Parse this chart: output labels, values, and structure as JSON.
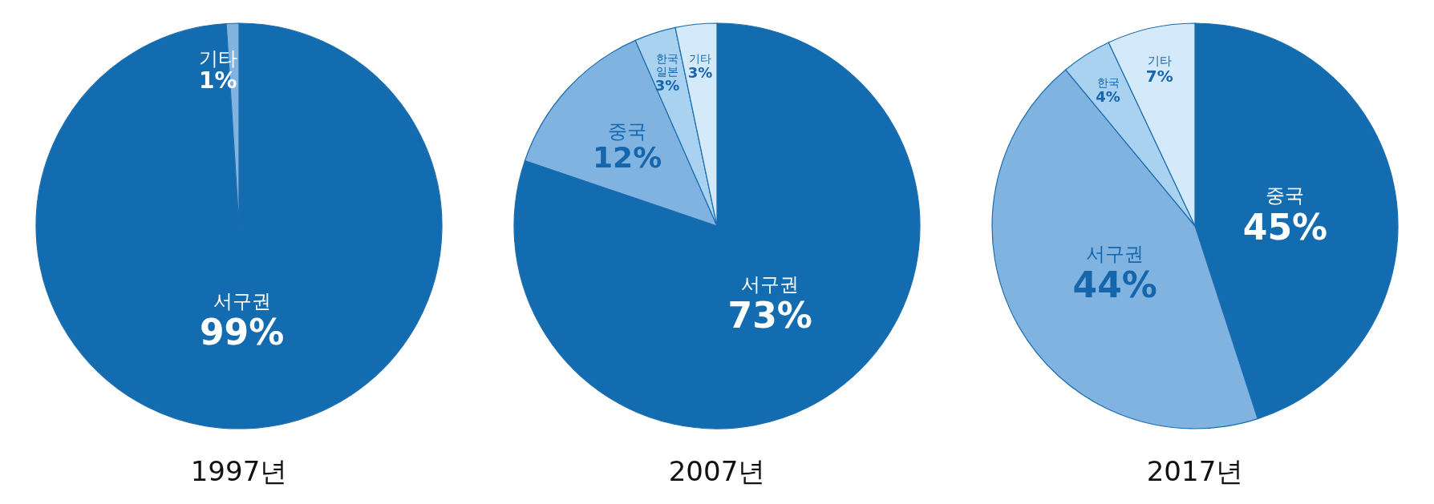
{
  "chart_data": [
    {
      "type": "pie",
      "title": "1997년",
      "categories": [
        "서구권",
        "기타"
      ],
      "values": [
        99,
        1
      ],
      "colors": [
        "#136cb0",
        "#80b3df"
      ],
      "value_labels": [
        "99%",
        "1%"
      ]
    },
    {
      "type": "pie",
      "title": "2007년",
      "categories": [
        "서구권",
        "중국",
        "한국\n일본",
        "기타"
      ],
      "values": [
        73,
        12,
        3,
        3
      ],
      "colors": [
        "#136cb0",
        "#80b3df",
        "#a9d1f0",
        "#d4e9fa"
      ],
      "value_labels": [
        "73%",
        "12%",
        "3%",
        "3%"
      ]
    },
    {
      "type": "pie",
      "title": "2017년",
      "categories": [
        "중국",
        "서구권",
        "한국",
        "기타"
      ],
      "values": [
        45,
        44,
        4,
        7
      ],
      "colors": [
        "#136cb0",
        "#80b3df",
        "#a9d1f0",
        "#d4e9fa"
      ],
      "value_labels": [
        "45%",
        "44%",
        "4%",
        "7%"
      ]
    }
  ]
}
